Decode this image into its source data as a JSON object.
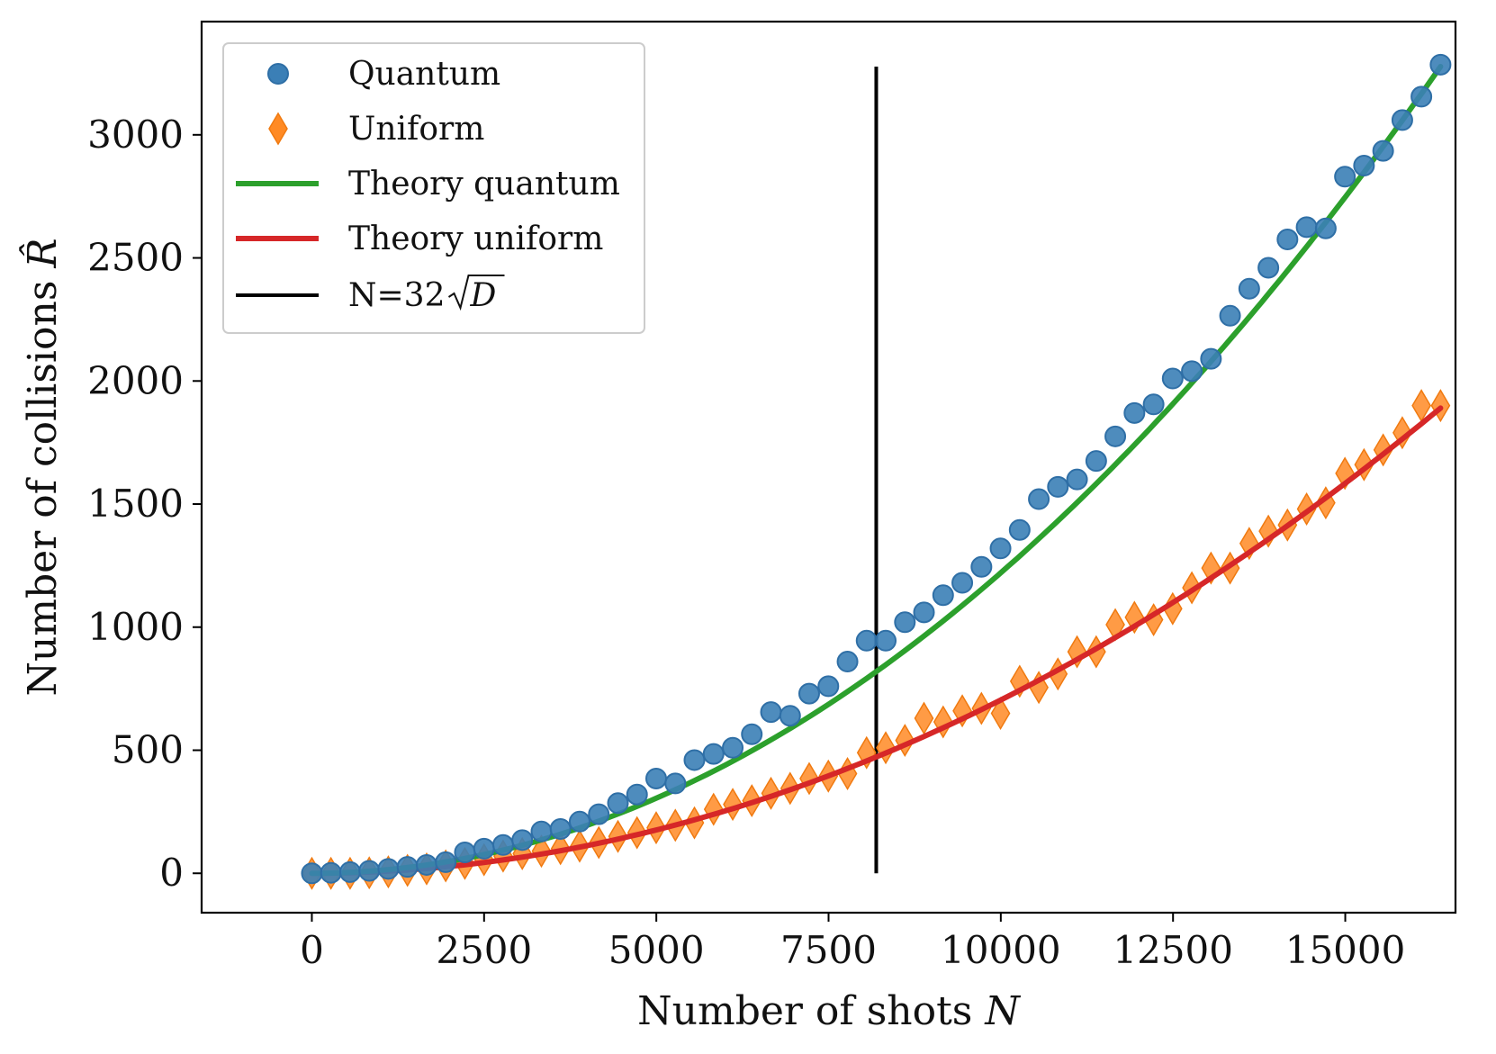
{
  "chart_data": {
    "type": "scatter",
    "xlabel": "Number of shots ",
    "xlabel_var": "N",
    "ylabel": "Number of collisions ",
    "ylabel_var": "R̂",
    "xlim": [
      -1600,
      16600
    ],
    "ylim": [
      -160,
      3460
    ],
    "x_ticks": [
      0,
      2500,
      5000,
      7500,
      10000,
      12500,
      15000
    ],
    "x_tick_labels": [
      "0",
      "2500",
      "5000",
      "7500",
      "10000",
      "12500",
      "15000"
    ],
    "y_ticks": [
      0,
      500,
      1000,
      1500,
      2000,
      2500,
      3000
    ],
    "y_tick_labels": [
      "0",
      "500",
      "1000",
      "1500",
      "2000",
      "2500",
      "3000"
    ],
    "grid": false,
    "legend_position": "top-left",
    "legend": [
      {
        "label": "Quantum",
        "kind": "circle",
        "color": "#3b7fb6"
      },
      {
        "label": "Uniform",
        "kind": "diamond",
        "color": "#ff8a24"
      },
      {
        "label": "Theory quantum",
        "kind": "line",
        "color": "#2ca02c"
      },
      {
        "label": "Theory uniform",
        "kind": "line",
        "color": "#d62728"
      },
      {
        "label": "N=32",
        "label_sqrt": "D",
        "kind": "line",
        "color": "#000000"
      }
    ],
    "vertical_line": {
      "x": 8192,
      "y_range": [
        0,
        3277
      ],
      "color": "#000000"
    },
    "series": [
      {
        "name": "Quantum",
        "marker": "circle",
        "color": "#3b7fb6",
        "x": [
          0,
          277,
          555,
          833,
          1110,
          1388,
          1666,
          1943,
          2221,
          2499,
          2776,
          3054,
          3332,
          3609,
          3887,
          4165,
          4443,
          4720,
          4998,
          5276,
          5553,
          5831,
          6109,
          6386,
          6664,
          6942,
          7219,
          7497,
          7775,
          8052,
          8330,
          8608,
          8885,
          9163,
          9441,
          9719,
          9996,
          10274,
          10552,
          10829,
          11107,
          11385,
          11662,
          11940,
          12218,
          12495,
          12773,
          13051,
          13328,
          13606,
          13884,
          14161,
          14439,
          14717,
          14995,
          15272,
          15550,
          15828,
          16105,
          16383
        ],
        "values": [
          0,
          2,
          5,
          10,
          18,
          26,
          34,
          45,
          85,
          100,
          115,
          135,
          170,
          180,
          210,
          240,
          285,
          320,
          385,
          365,
          460,
          485,
          510,
          565,
          655,
          640,
          730,
          760,
          860,
          945,
          945,
          1020,
          1060,
          1130,
          1180,
          1245,
          1320,
          1395,
          1520,
          1570,
          1600,
          1675,
          1775,
          1870,
          1905,
          2010,
          2040,
          2090,
          2265,
          2375,
          2460,
          2575,
          2625,
          2620,
          2830,
          2875,
          2935,
          3060,
          3155,
          3285
        ]
      },
      {
        "name": "Uniform",
        "marker": "diamond",
        "color": "#ff8a24",
        "x": [
          0,
          277,
          555,
          833,
          1110,
          1388,
          1666,
          1943,
          2221,
          2499,
          2776,
          3054,
          3332,
          3609,
          3887,
          4165,
          4443,
          4720,
          4998,
          5276,
          5553,
          5831,
          6109,
          6386,
          6664,
          6942,
          7219,
          7497,
          7775,
          8052,
          8330,
          8608,
          8885,
          9163,
          9441,
          9719,
          9996,
          10274,
          10552,
          10829,
          11107,
          11385,
          11662,
          11940,
          12218,
          12495,
          12773,
          13051,
          13328,
          13606,
          13884,
          14161,
          14439,
          14717,
          14995,
          15272,
          15550,
          15828,
          16105,
          16383
        ],
        "values": [
          0,
          0,
          0,
          2,
          6,
          12,
          18,
          30,
          40,
          55,
          70,
          80,
          90,
          100,
          110,
          125,
          150,
          165,
          185,
          195,
          205,
          260,
          280,
          295,
          325,
          345,
          385,
          395,
          405,
          490,
          510,
          540,
          630,
          615,
          660,
          670,
          650,
          780,
          755,
          810,
          900,
          900,
          1010,
          1040,
          1030,
          1075,
          1160,
          1240,
          1240,
          1340,
          1390,
          1415,
          1480,
          1505,
          1625,
          1660,
          1720,
          1790,
          1900,
          1900
        ]
      },
      {
        "name": "Theory quantum",
        "color": "#2ca02c",
        "kind": "line",
        "x_max": 16383,
        "y_at_x_max": 3277
      },
      {
        "name": "Theory uniform",
        "color": "#d62728",
        "kind": "line",
        "x_max": 16383,
        "y_at_x_max": 1890
      }
    ]
  }
}
